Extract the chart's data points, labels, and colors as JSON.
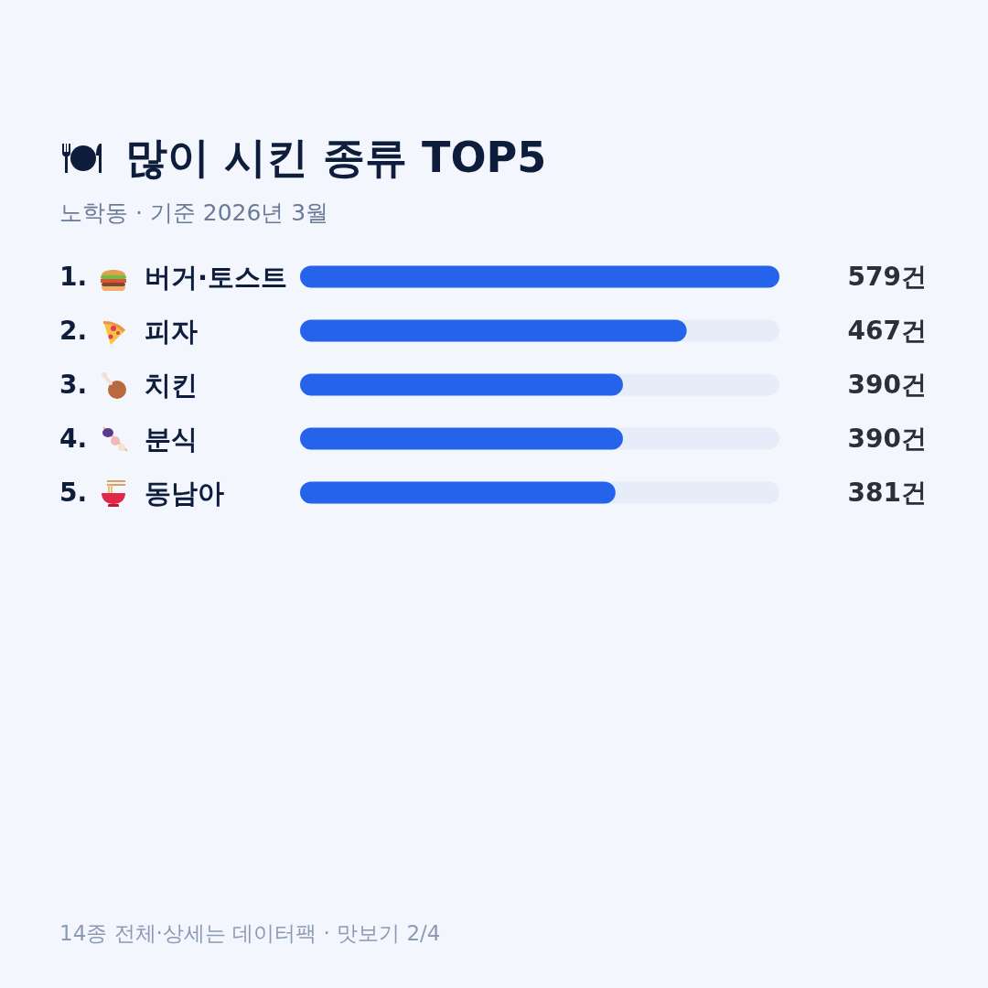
{
  "chart_data": {
    "type": "bar",
    "orientation": "horizontal",
    "title": "많이 시킨 종류 TOP5",
    "subtitle": "노학동 · 기준 2026년 3월",
    "categories": [
      "1. 버거·토스트",
      "2. 피자",
      "3. 치킨",
      "4. 분식",
      "5. 동남아"
    ],
    "values": [
      579,
      467,
      390,
      390,
      381
    ],
    "value_labels": [
      "579건",
      "467건",
      "390건",
      "390건",
      "381건"
    ],
    "color": "#2563eb",
    "annotations": [
      "14종 전체·상세는 데이터팩 · 맛보기 2/4"
    ]
  }
}
